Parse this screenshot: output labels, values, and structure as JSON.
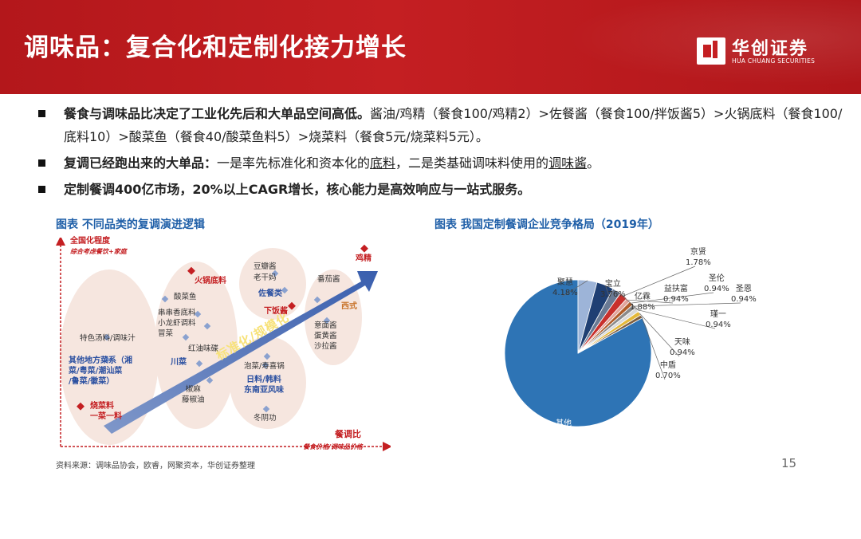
{
  "header": {
    "title": "调味品：复合化和定制化接力增长",
    "logo_name": "华创证券",
    "logo_sub": "HUA CHUANG SECURITIES"
  },
  "bullets": [
    {
      "bold": "餐食与调味品比决定了工业化先后和大单品空间高低。",
      "text": "酱油/鸡精（餐食100/鸡精2）>佐餐酱（餐食100/拌饭酱5）>火锅底料（餐食100/底料10）>酸菜鱼（餐食40/酸菜鱼料5）>烧菜料（餐食5元/烧菜料5元）。"
    },
    {
      "bold": "复调已经跑出来的大单品：",
      "text_a": "一是率先标准化和资本化的",
      "ul_a": "底料",
      "text_b": "，二是类基础调味料使用的",
      "ul_b": "调味酱",
      "text_c": "。"
    },
    {
      "bold": "定制餐调400亿市场，20%以上CAGR增长，核心能力是高效响应与一站式服务。"
    }
  ],
  "left_chart": {
    "caption": "图表  不同品类的复调演进逻辑",
    "y_axis": "全国化程度",
    "y_axis_sub": "综合考虑餐饮+家庭",
    "x_axis": "餐调比",
    "x_axis_sub": "餐食价格/调味品价格",
    "arrow_text": "标准化/规模化",
    "labels": {
      "chicken": "鸡精",
      "hotpot": "火锅底料",
      "pickle_fish": "酸菜鱼",
      "doubanjiang": "豆瓣酱",
      "laoganma": "老干妈",
      "tomato": "番茄酱",
      "zuocan": "佐餐类",
      "xiafanjiang": "下饭酱",
      "western": "西式",
      "western_items": "意面酱\n蛋黄酱\n沙拉酱",
      "chuanchuan": "串串香底料\n小龙虾调料\n冒菜",
      "chuancai": "川菜",
      "hongyou": "红油味碟",
      "tese": "特色汤料/调味汁",
      "difang": "其他地方菜系（湘\n菜/粤菜/潮汕菜\n/鲁菜/徽菜）",
      "shaocai": "烧菜料\n一菜一料",
      "paocai": "泡菜/寿喜锅",
      "rihan": "日料/韩料\n东南亚风味",
      "jiaoma": "椒麻\n藤椒油",
      "dongyin": "冬阴功"
    }
  },
  "right_chart": {
    "caption": "图表  我国定制餐调企业竞争格局（2019年）"
  },
  "chart_data": {
    "type": "pie",
    "title": "我国定制餐调企业竞争格局（2019年）",
    "slices": [
      {
        "name": "其他",
        "value": 83.0,
        "label": "83.00%",
        "color": "#2e74b5"
      },
      {
        "name": "聚慧",
        "value": 4.18,
        "label": "4.18%",
        "color": "#9db4d8"
      },
      {
        "name": "宝立",
        "value": 3.76,
        "label": "3.76%",
        "color": "#1f3f73"
      },
      {
        "name": "亿霖",
        "value": 1.88,
        "label": "1.88%",
        "color": "#6a7a94"
      },
      {
        "name": "京贤",
        "value": 1.78,
        "label": "1.78%",
        "color": "#c8302c"
      },
      {
        "name": "益扶富",
        "value": 0.94,
        "label": "0.94%",
        "color": "#e2a59c"
      },
      {
        "name": "圣伦",
        "value": 0.94,
        "label": "0.94%",
        "color": "#b05c28"
      },
      {
        "name": "圣恩",
        "value": 0.94,
        "label": "0.94%",
        "color": "#8a8a8a"
      },
      {
        "name": "瑾一",
        "value": 0.94,
        "label": "0.94%",
        "color": "#d9d9d9"
      },
      {
        "name": "天味",
        "value": 0.94,
        "label": "0.94%",
        "color": "#e4b83a"
      },
      {
        "name": "中盾",
        "value": 0.7,
        "label": "0.70%",
        "color": "#7f5f3f"
      }
    ]
  },
  "footer": {
    "source": "资料来源：调味品协会，欧睿，网聚资本，华创证券整理",
    "page": "15"
  }
}
